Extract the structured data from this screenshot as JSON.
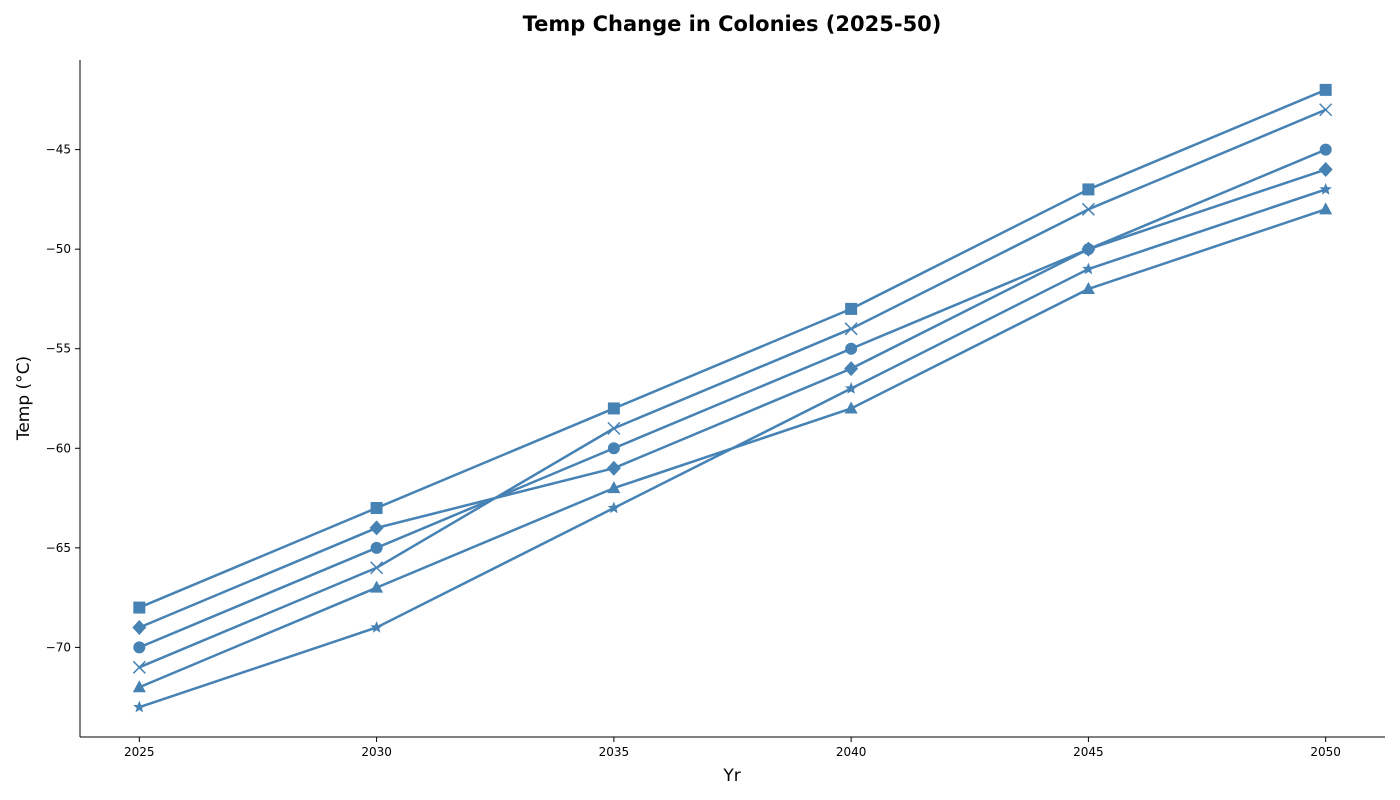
{
  "chart_data": {
    "type": "line",
    "title": "Temp Change in Colonies (2025-50)",
    "xlabel": "Yr",
    "ylabel": "Temp (°C)",
    "x": [
      2025,
      2030,
      2035,
      2040,
      2045,
      2050
    ],
    "xticks": [
      "2025",
      "2030",
      "2035",
      "2040",
      "2045",
      "2050"
    ],
    "yticks": [
      -45,
      -50,
      -55,
      -60,
      -65,
      -70
    ],
    "ytick_labels": [
      "−45",
      "−50",
      "−55",
      "−60",
      "−65",
      "−70"
    ],
    "xlim": [
      2023.75,
      2051.25
    ],
    "ylim": [
      -74.5,
      -40.5
    ],
    "grid": false,
    "legend": "none",
    "color": "#4682b4",
    "series": [
      {
        "marker": "square",
        "values": [
          -68,
          -63,
          -58,
          -53,
          -47,
          -42
        ]
      },
      {
        "marker": "x",
        "values": [
          -71,
          -66,
          -59,
          -54,
          -48,
          -43
        ]
      },
      {
        "marker": "circle",
        "values": [
          -70,
          -65,
          -60,
          -55,
          -50,
          -45
        ]
      },
      {
        "marker": "diamond",
        "values": [
          -69,
          -64,
          -61,
          -56,
          -50,
          -46
        ]
      },
      {
        "marker": "star",
        "values": [
          -73,
          -69,
          -63,
          -57,
          -51,
          -47
        ]
      },
      {
        "marker": "triangle",
        "values": [
          -72,
          -67,
          -62,
          -58,
          -52,
          -48
        ]
      }
    ]
  }
}
